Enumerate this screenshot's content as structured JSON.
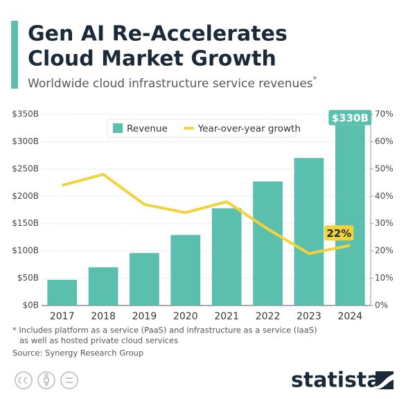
{
  "chart_data": {
    "type": "bar",
    "title": [
      "Gen AI Re-Accelerates",
      "Cloud Market Growth"
    ],
    "subtitle": "Worldwide cloud infrastructure service revenues",
    "subtitle_mark": "*",
    "categories": [
      "2017",
      "2018",
      "2019",
      "2020",
      "2021",
      "2022",
      "2023",
      "2024"
    ],
    "series": [
      {
        "name": "Revenue",
        "type": "bar",
        "color": "#5bbfad",
        "values": [
          47,
          70,
          96,
          129,
          178,
          227,
          270,
          330
        ],
        "value_labels": [
          null,
          null,
          null,
          null,
          null,
          null,
          null,
          "$330B"
        ]
      },
      {
        "name": "Year-over-year growth",
        "type": "line",
        "axis": "y2",
        "color": "#f3d23a",
        "values": [
          44,
          48,
          37,
          34,
          38,
          28,
          19,
          22
        ],
        "value_labels": [
          null,
          null,
          null,
          null,
          null,
          null,
          null,
          "22%"
        ]
      }
    ],
    "ylim": [
      0,
      350
    ],
    "yticks": [
      {
        "value": 0,
        "label": "$0B"
      },
      {
        "value": 50,
        "label": "$50B"
      },
      {
        "value": 100,
        "label": "$100B"
      },
      {
        "value": 150,
        "label": "$150B"
      },
      {
        "value": 200,
        "label": "$200B"
      },
      {
        "value": 250,
        "label": "$250B"
      },
      {
        "value": 300,
        "label": "$300B"
      },
      {
        "value": 350,
        "label": "$350B"
      }
    ],
    "y2lim": [
      0,
      70
    ],
    "y2ticks": [
      {
        "value": 0,
        "label": "0%"
      },
      {
        "value": 10,
        "label": "10%"
      },
      {
        "value": 20,
        "label": "20%"
      },
      {
        "value": 30,
        "label": "30%"
      },
      {
        "value": 40,
        "label": "40%"
      },
      {
        "value": 50,
        "label": "50%"
      },
      {
        "value": 60,
        "label": "60%"
      },
      {
        "value": 70,
        "label": "70%"
      }
    ],
    "grid": true,
    "legend": "top",
    "notes": [
      "* Includes platform as a service (PaaS) and infrastructure as a service (IaaS)",
      "as well as hosted private cloud services"
    ],
    "source": "Source: Synergy Research Group",
    "brand": "statista"
  }
}
